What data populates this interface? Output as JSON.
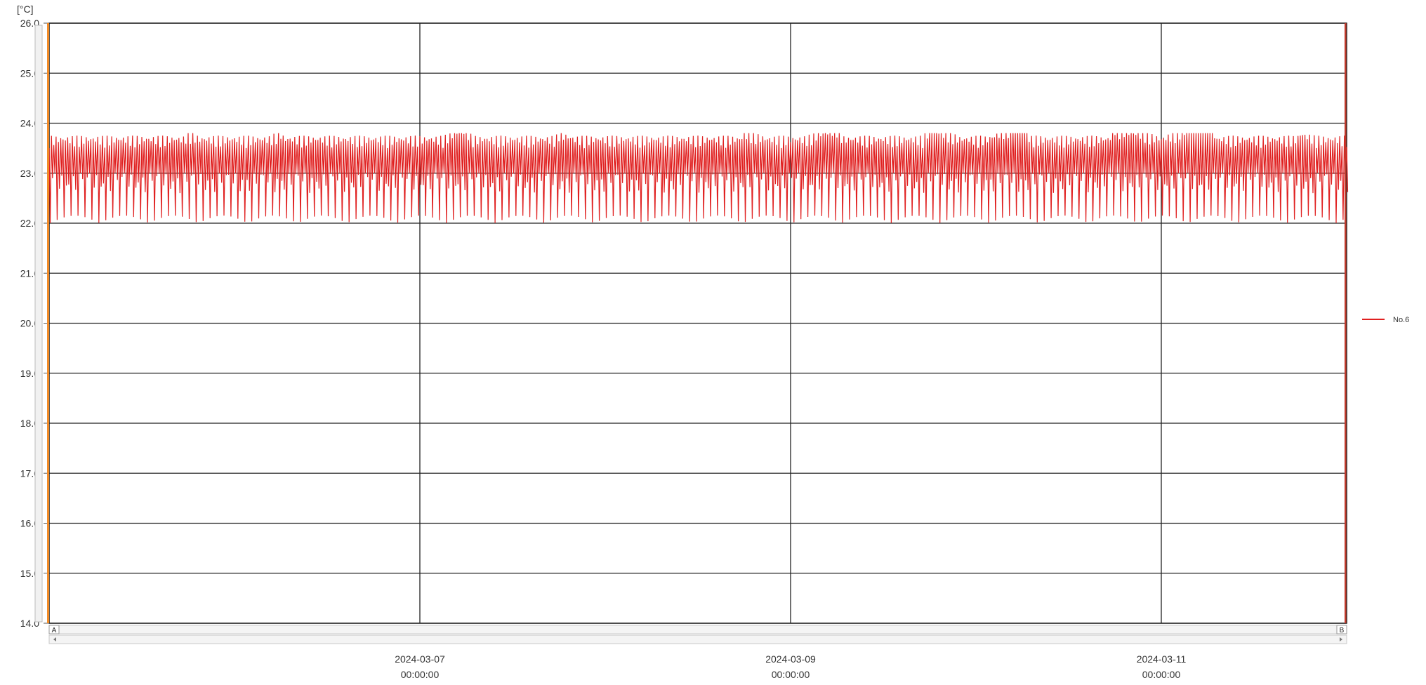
{
  "chart_data": {
    "type": "line",
    "title": "",
    "xlabel": "",
    "ylabel": "[°C]",
    "ylim": [
      14.0,
      26.0
    ],
    "yticks": [
      14.0,
      15.0,
      16.0,
      17.0,
      18.0,
      19.0,
      20.0,
      21.0,
      22.0,
      23.0,
      24.0,
      25.0,
      26.0
    ],
    "ytick_labels": [
      "14.0",
      "15.0",
      "16.0",
      "17.0",
      "18.0",
      "19.0",
      "20.0",
      "21.0",
      "22.0",
      "23.0",
      "24.0",
      "25.0",
      "26.0"
    ],
    "xlim": [
      "2024-03-05 00:00:00",
      "2024-03-12 00:00:00"
    ],
    "xticks": [
      {
        "date": "2024-03-07",
        "time": "00:00:00",
        "value": "2024-03-07 00:00:00"
      },
      {
        "date": "2024-03-09",
        "time": "00:00:00",
        "value": "2024-03-09 00:00:00"
      },
      {
        "date": "2024-03-11",
        "time": "00:00:00",
        "value": "2024-03-11 00:00:00"
      }
    ],
    "grid": true,
    "legend": {
      "position": "right",
      "entries": [
        {
          "label": "No.6",
          "color": "#e02020"
        }
      ]
    },
    "cursors": {
      "a_label": "A",
      "b_label": "B"
    },
    "series": [
      {
        "name": "No.6",
        "color": "#e02020",
        "x": [
          "2024-03-05 00:00",
          "2024-03-05 06:00",
          "2024-03-05 12:00",
          "2024-03-05 18:00",
          "2024-03-06 00:00",
          "2024-03-06 06:00",
          "2024-03-06 12:00",
          "2024-03-06 18:00",
          "2024-03-07 00:00",
          "2024-03-07 06:00",
          "2024-03-07 12:00",
          "2024-03-07 18:00",
          "2024-03-08 00:00",
          "2024-03-08 06:00",
          "2024-03-08 12:00",
          "2024-03-08 18:00",
          "2024-03-09 00:00",
          "2024-03-09 06:00",
          "2024-03-09 12:00",
          "2024-03-09 18:00",
          "2024-03-10 00:00",
          "2024-03-10 06:00",
          "2024-03-10 12:00",
          "2024-03-10 18:00",
          "2024-03-11 00:00",
          "2024-03-11 06:00",
          "2024-03-11 12:00",
          "2024-03-11 18:00",
          "2024-03-12 00:00"
        ],
        "y": [
          23.3,
          23.5,
          22.3,
          23.6,
          23.2,
          23.6,
          22.2,
          23.5,
          23.3,
          23.7,
          22.1,
          23.6,
          23.3,
          23.5,
          22.3,
          23.6,
          23.4,
          23.7,
          22.2,
          23.7,
          23.4,
          23.8,
          22.1,
          23.7,
          23.5,
          23.8,
          22.2,
          23.6,
          23.3
        ],
        "oscillation": {
          "max": 23.8,
          "min": 22.0
        }
      }
    ]
  }
}
